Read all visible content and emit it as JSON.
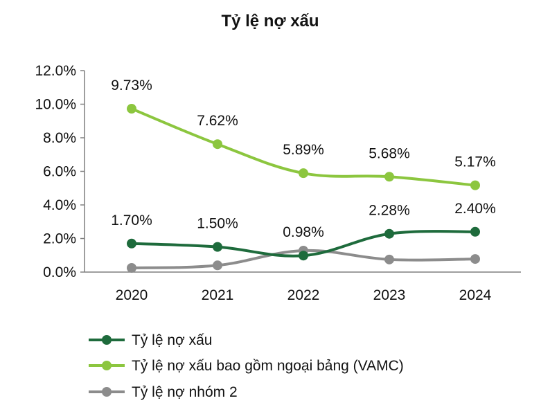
{
  "chart_data": {
    "type": "line",
    "title": "Tỷ lệ nợ xấu",
    "xlabel": "",
    "ylabel": "",
    "categories": [
      "2020",
      "2021",
      "2022",
      "2023",
      "2024"
    ],
    "ylim": [
      0,
      12
    ],
    "y_ticks": [
      0,
      2,
      4,
      6,
      8,
      10,
      12
    ],
    "y_tick_labels": [
      "0.0%",
      "2.0%",
      "4.0%",
      "6.0%",
      "8.0%",
      "10.0%",
      "12.0%"
    ],
    "grid": false,
    "smooth": true,
    "legend_position": "bottom-left",
    "series": [
      {
        "name": "Tỷ lệ nợ xấu",
        "values": [
          1.7,
          1.5,
          0.98,
          2.28,
          2.4
        ],
        "labels": [
          "1.70%",
          "1.50%",
          "0.98%",
          "2.28%",
          "2.40%"
        ],
        "color": "#1e6b3c"
      },
      {
        "name": "Tỷ lệ nợ xấu bao gồm ngoại bảng (VAMC)",
        "values": [
          9.73,
          7.62,
          5.89,
          5.68,
          5.17
        ],
        "labels": [
          "9.73%",
          "7.62%",
          "5.89%",
          "5.68%",
          "5.17%"
        ],
        "color": "#8cc63f"
      },
      {
        "name": "Tỷ lệ nợ nhóm 2",
        "values": [
          0.25,
          0.4,
          1.28,
          0.75,
          0.78
        ],
        "labels": [],
        "color": "#8c8c8c"
      }
    ]
  }
}
